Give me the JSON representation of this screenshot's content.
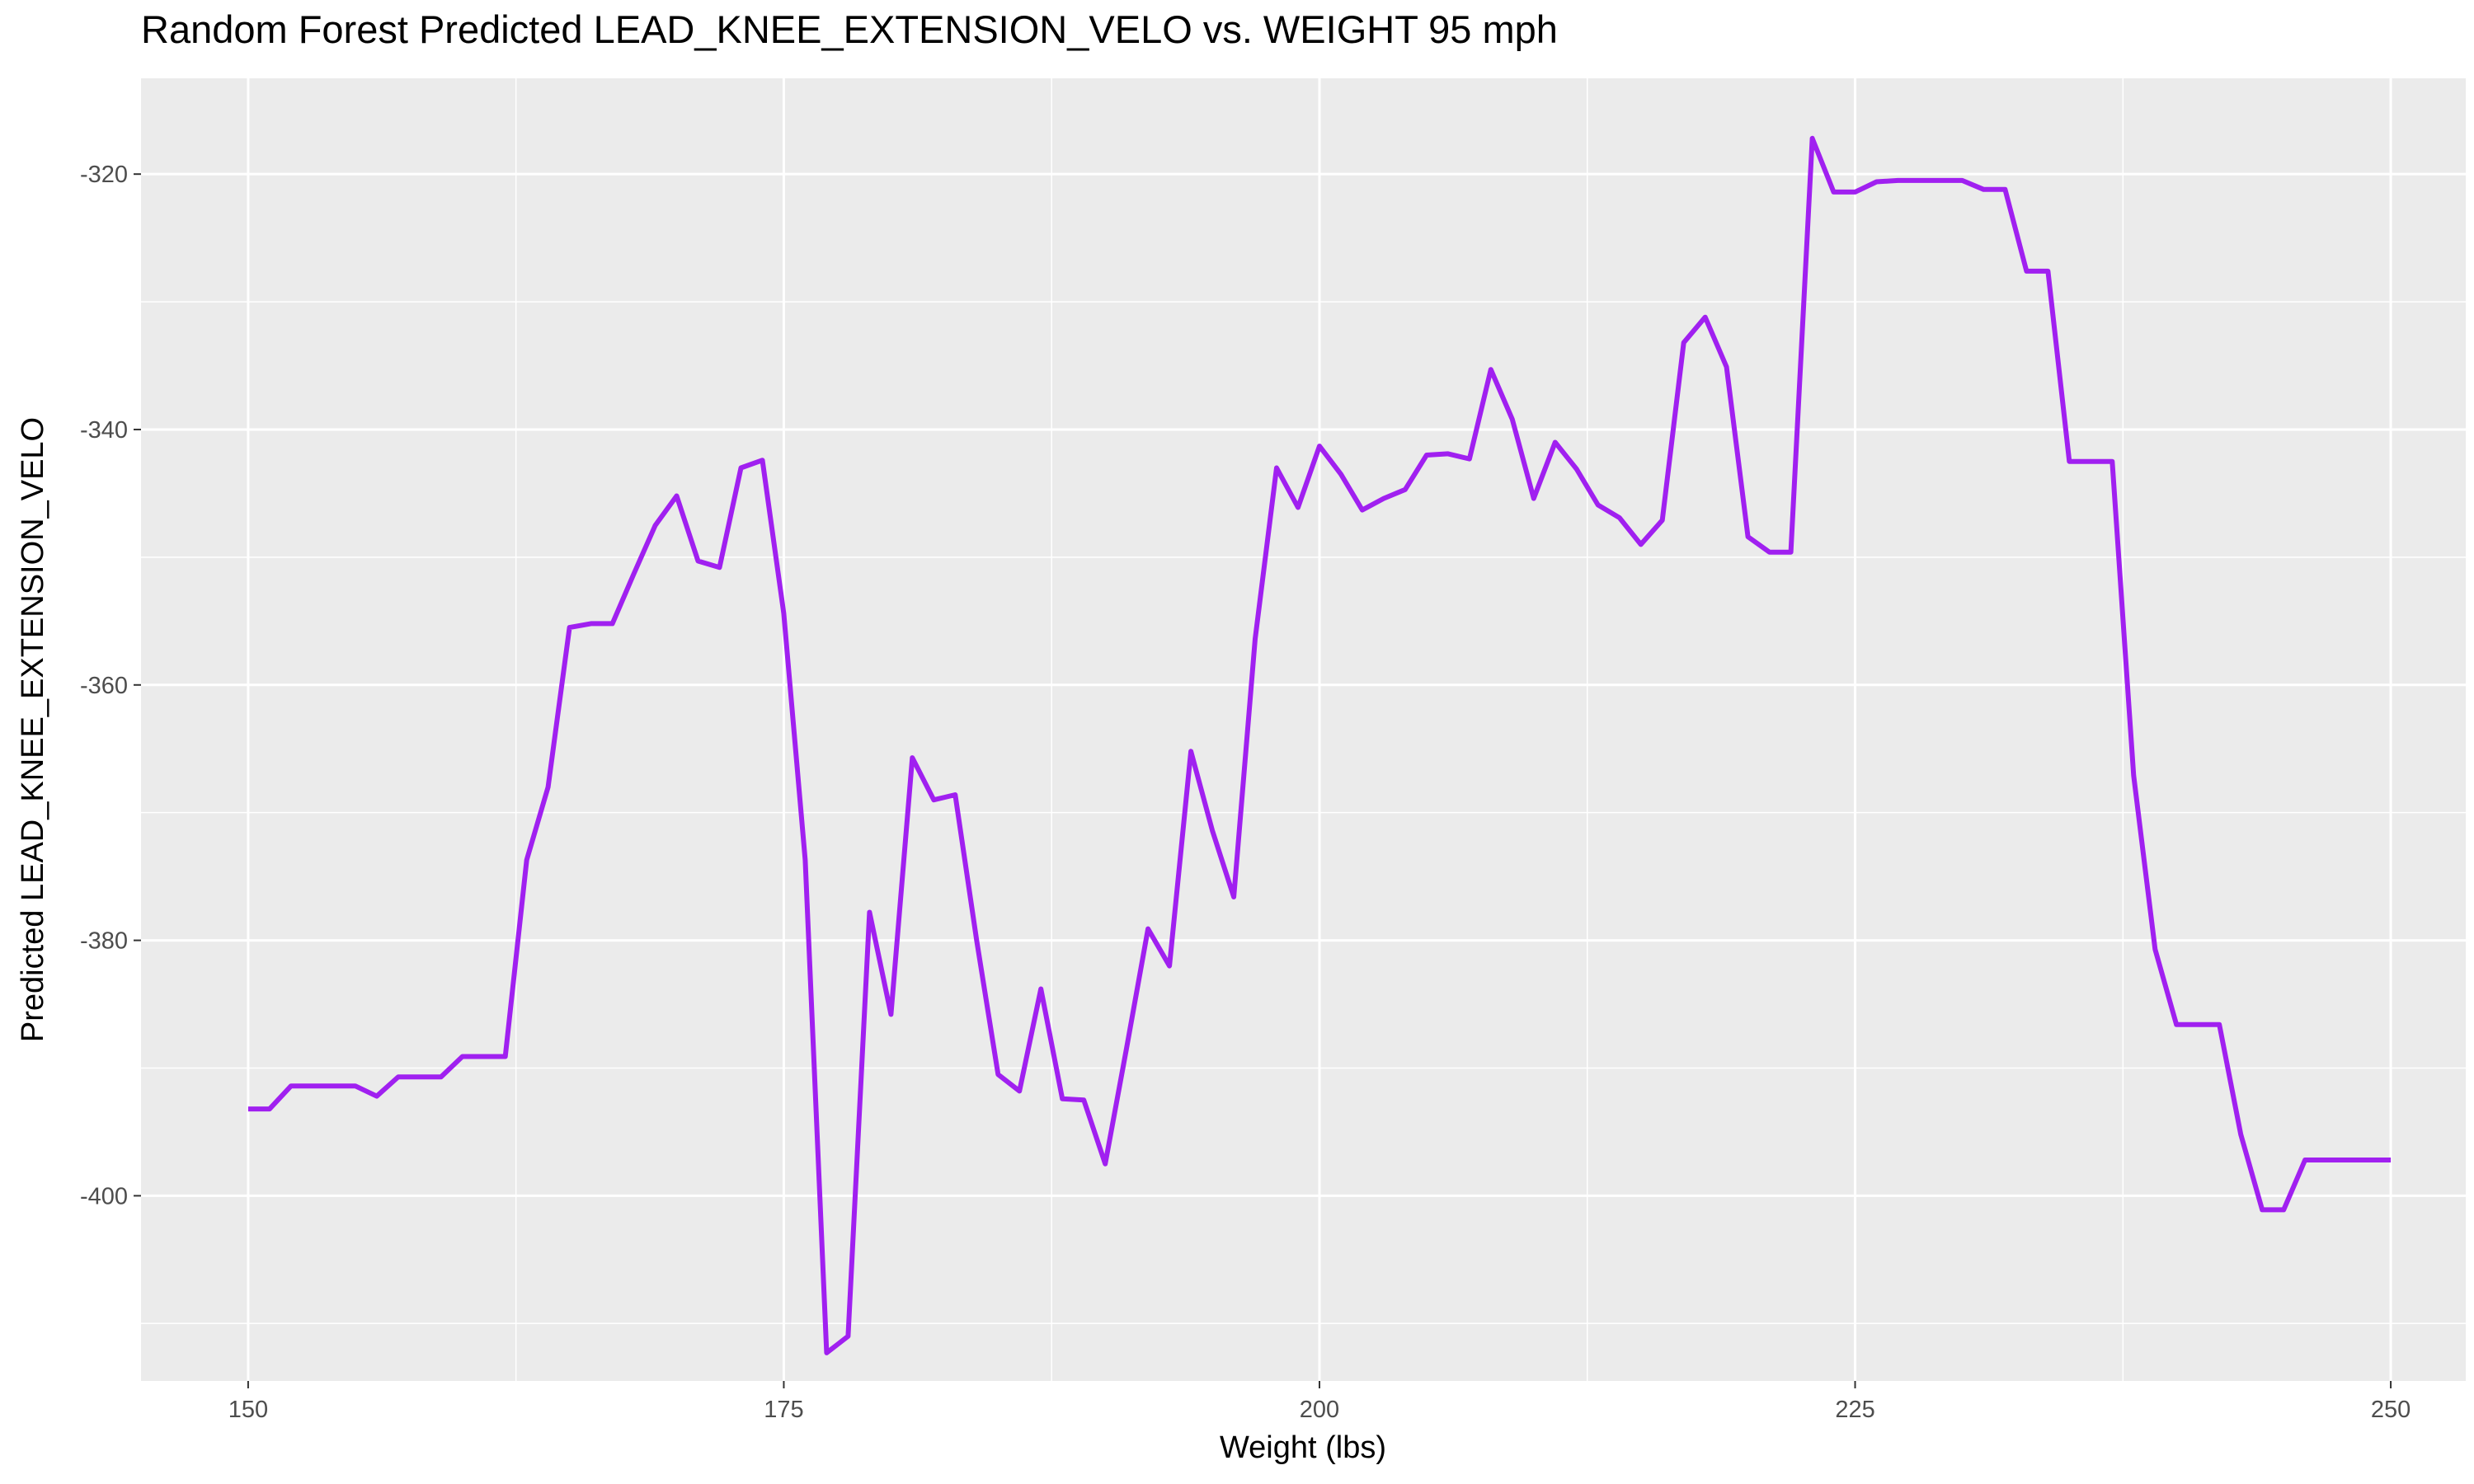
{
  "chart_data": {
    "type": "line",
    "title": "Random Forest Predicted LEAD_KNEE_EXTENSION_VELO vs. WEIGHT 95 mph",
    "xlabel": "Weight (lbs)",
    "ylabel": "Predicted LEAD_KNEE_EXTENSION_VELO",
    "xlim": [
      145,
      253.5
    ],
    "ylim": [
      -414.5,
      -312.5
    ],
    "x_ticks": [
      150,
      175,
      200,
      225,
      250
    ],
    "x_tick_labels": [
      "150",
      "175",
      "200",
      "225",
      "250"
    ],
    "y_ticks": [
      -320,
      -340,
      -360,
      -380,
      -400
    ],
    "y_tick_labels": [
      "-320",
      "-340",
      "-360",
      "-380",
      "-400"
    ],
    "grid": true,
    "line_color": "#a020f0",
    "background_color": "#ebebeb",
    "series": [
      {
        "x": [
          150,
          151,
          152,
          153,
          154,
          155,
          156,
          157,
          158,
          159,
          160,
          161,
          162,
          163,
          164,
          165,
          166,
          167,
          168,
          169,
          170,
          171,
          172,
          173,
          174,
          175,
          176,
          177,
          178,
          179,
          180,
          181,
          182,
          183,
          184,
          185,
          186,
          187,
          188,
          189,
          190,
          191,
          192,
          193,
          194,
          195,
          196,
          197,
          198,
          199,
          200,
          201,
          202,
          203,
          204,
          205,
          206,
          207,
          208,
          209,
          210,
          211,
          212,
          213,
          214,
          215,
          216,
          217,
          218,
          219,
          220,
          221,
          222,
          223,
          224,
          225,
          226,
          227,
          228,
          229,
          230,
          231,
          232,
          233,
          234,
          235,
          236,
          237,
          238,
          239,
          240,
          241,
          242,
          243,
          244,
          245,
          246,
          247,
          248,
          249,
          250
        ],
        "y": [
          -393.2,
          -393.2,
          -391.4,
          -391.4,
          -391.4,
          -391.4,
          -392.2,
          -390.7,
          -390.7,
          -390.7,
          -389.1,
          -389.1,
          -389.1,
          -373.7,
          -368.0,
          -355.5,
          -355.2,
          -355.2,
          -351.3,
          -347.5,
          -345.2,
          -350.3,
          -350.8,
          -343.0,
          -342.4,
          -354.4,
          -373.7,
          -412.3,
          -411.0,
          -377.8,
          -385.8,
          -365.7,
          -369.0,
          -368.6,
          -380.0,
          -390.5,
          -391.8,
          -383.8,
          -392.4,
          -392.5,
          -397.5,
          -388.4,
          -379.1,
          -382.0,
          -365.2,
          -371.4,
          -376.6,
          -356.4,
          -343.0,
          -346.1,
          -341.3,
          -343.5,
          -346.3,
          -345.4,
          -344.7,
          -342.0,
          -341.9,
          -342.3,
          -335.3,
          -339.2,
          -345.4,
          -341.0,
          -343.1,
          -345.9,
          -346.9,
          -349.0,
          -347.1,
          -333.2,
          -331.2,
          -335.1,
          -348.4,
          -349.6,
          -349.6,
          -317.2,
          -321.4,
          -321.4,
          -320.6,
          -320.5,
          -320.5,
          -320.5,
          -320.5,
          -321.2,
          -321.2,
          -327.6,
          -327.6,
          -342.5,
          -342.5,
          -342.5,
          -367.1,
          -380.7,
          -386.6,
          -386.6,
          -386.6,
          -395.2,
          -401.1,
          -401.1,
          -397.2,
          -397.2,
          -397.2,
          -397.2,
          -397.2
        ]
      }
    ]
  }
}
